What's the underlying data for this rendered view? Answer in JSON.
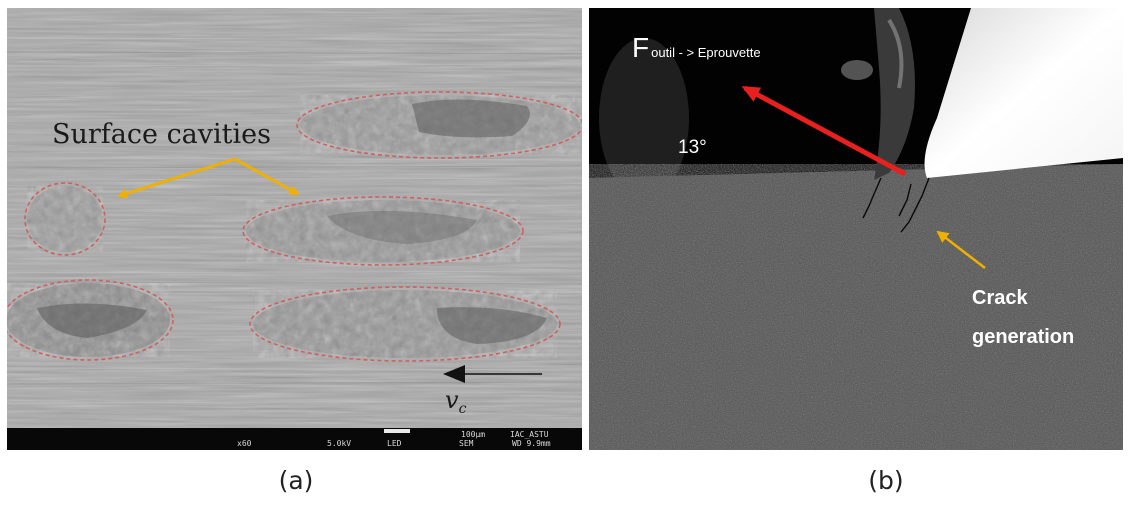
{
  "panel_a": {
    "annotation": "Surface cavities",
    "velocity_symbol": "v",
    "velocity_subscript": "c",
    "info_bar": {
      "magnification": "x60",
      "voltage": "5.0kV",
      "detector": "LED",
      "mode": "SEM",
      "scale": "100µm",
      "lab": "IAC_ASTU",
      "working_distance": "WD 9.9mm"
    },
    "caption": "(a)",
    "colors": {
      "outline": "#d06060",
      "arrow": "#f0b000",
      "info_bar": "#080808"
    }
  },
  "panel_b": {
    "force_main": "F",
    "force_sub": "outil - > Eprouvette",
    "angle": "13°",
    "crack_line1": "Crack",
    "crack_line2": "generation",
    "caption": "(b)",
    "colors": {
      "force_arrow": "#e8201e",
      "crack_arrow": "#f0b000"
    }
  }
}
